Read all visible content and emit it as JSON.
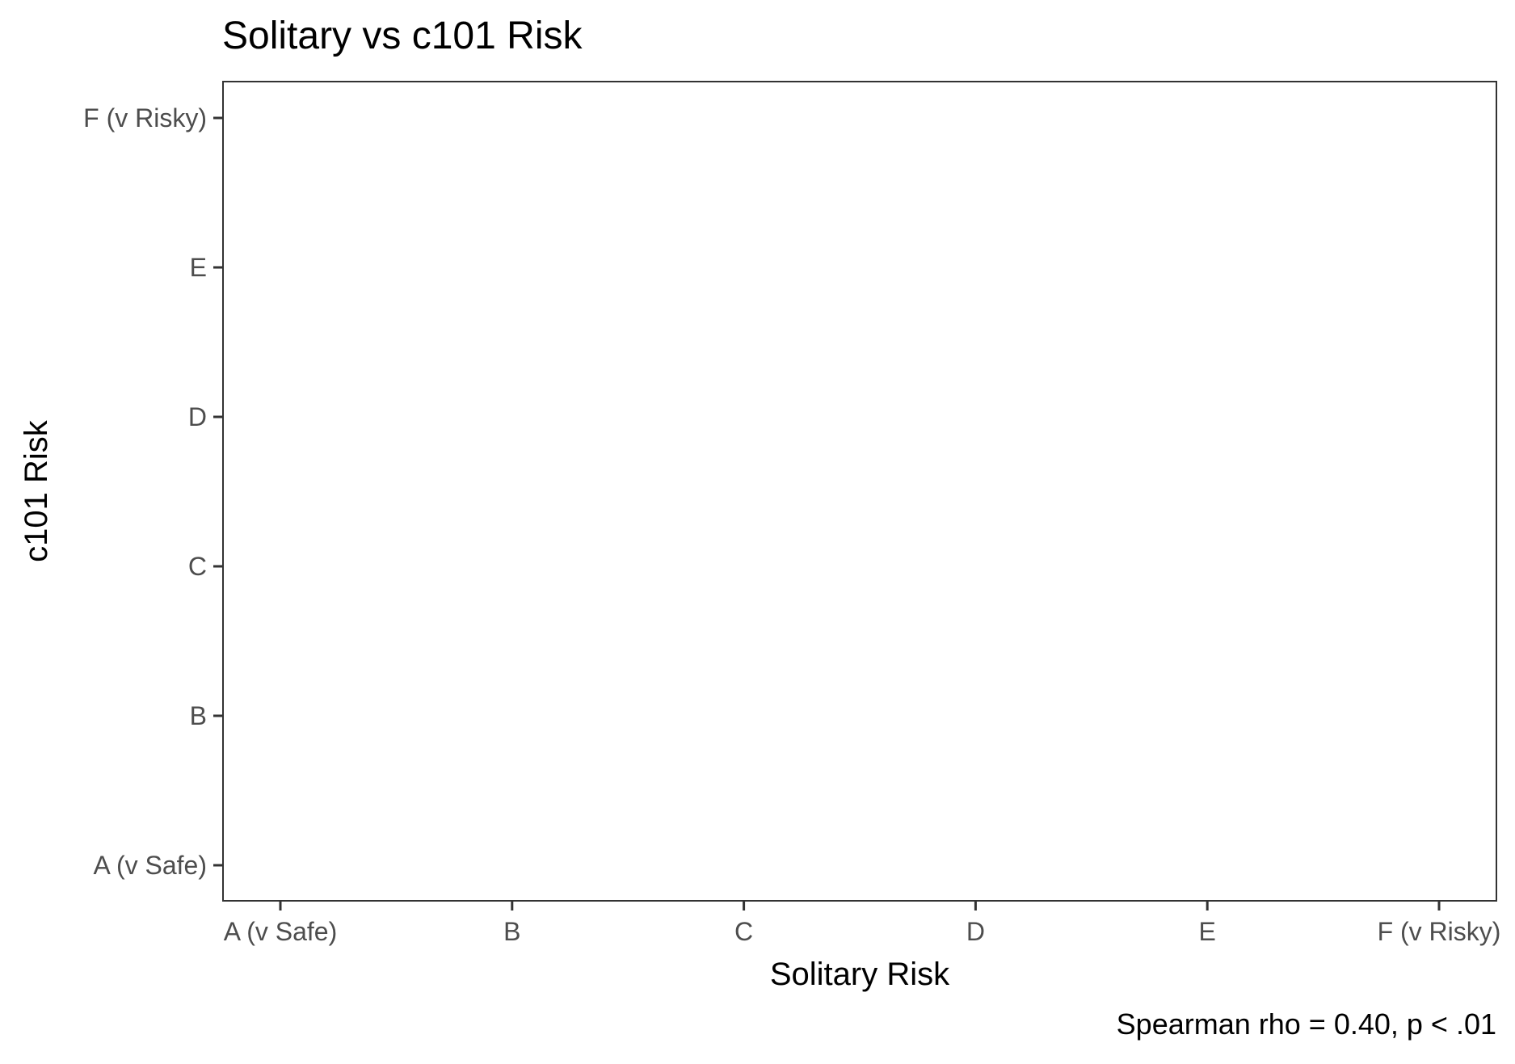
{
  "chart_data": {
    "type": "scatter",
    "title": "Solitary vs c101 Risk",
    "xlabel": "Solitary Risk",
    "ylabel": "c101 Risk",
    "caption": "Spearman rho = 0.40, p < .01",
    "x_categories": [
      "A (v Safe)",
      "B",
      "C",
      "D",
      "E",
      "F (v Risky)"
    ],
    "y_categories": [
      "A (v Safe)",
      "B",
      "C",
      "D",
      "E",
      "F (v Risky)"
    ],
    "points": [],
    "grid": false,
    "legend": "none"
  },
  "colors": {
    "panel_border": "#333333",
    "tick": "#333333",
    "tick_label": "#4d4d4d",
    "text": "#000000",
    "background": "#ffffff"
  }
}
